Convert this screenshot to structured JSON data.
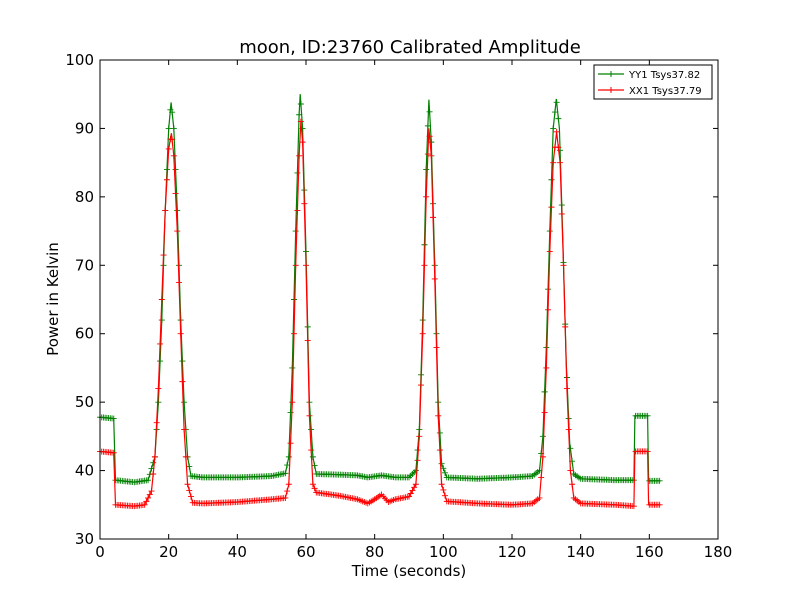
{
  "chart_data": {
    "type": "line",
    "title": "moon, ID:23760 Calibrated Amplitude",
    "xlabel": "Time (seconds)",
    "ylabel": "Power in Kelvin",
    "xlim": [
      0,
      180
    ],
    "ylim": [
      30,
      100
    ],
    "xticks": [
      "0",
      "20",
      "40",
      "60",
      "80",
      "100",
      "120",
      "140",
      "160",
      "180"
    ],
    "yticks": [
      "30",
      "40",
      "50",
      "60",
      "70",
      "80",
      "90",
      "100"
    ],
    "grid": false,
    "legend": "top-right",
    "colors": {
      "YY1": "#008000",
      "XX1": "#ff0000"
    },
    "series": [
      {
        "name": "YY1 Tsys37.82",
        "color": "#008000",
        "marker": "plus",
        "points": [
          [
            0,
            47.8
          ],
          [
            4,
            47.6
          ],
          [
            4.5,
            38.6
          ],
          [
            10,
            38.3
          ],
          [
            14,
            38.6
          ],
          [
            16,
            42
          ],
          [
            17,
            50
          ],
          [
            18,
            62
          ],
          [
            19,
            78
          ],
          [
            20,
            90
          ],
          [
            20.7,
            93.8
          ],
          [
            21.5,
            90
          ],
          [
            22.5,
            78
          ],
          [
            23.5,
            62
          ],
          [
            24.5,
            50
          ],
          [
            25.5,
            42
          ],
          [
            26.5,
            39.2
          ],
          [
            30,
            39
          ],
          [
            40,
            39
          ],
          [
            50,
            39.2
          ],
          [
            54,
            39.6
          ],
          [
            55,
            42
          ],
          [
            56,
            55
          ],
          [
            57,
            75
          ],
          [
            58,
            92
          ],
          [
            58.3,
            95
          ],
          [
            59,
            90
          ],
          [
            60,
            72
          ],
          [
            61,
            50
          ],
          [
            62,
            42
          ],
          [
            63,
            39.5
          ],
          [
            70,
            39.4
          ],
          [
            75,
            39.3
          ],
          [
            78,
            39
          ],
          [
            82,
            39.3
          ],
          [
            86,
            39
          ],
          [
            90,
            39
          ],
          [
            92,
            40
          ],
          [
            93,
            46
          ],
          [
            94,
            62
          ],
          [
            95,
            84
          ],
          [
            95.8,
            94.2
          ],
          [
            96.5,
            88
          ],
          [
            97.5,
            70
          ],
          [
            98.5,
            50
          ],
          [
            99.5,
            41
          ],
          [
            101,
            39
          ],
          [
            110,
            38.8
          ],
          [
            120,
            39
          ],
          [
            126,
            39.2
          ],
          [
            128,
            40
          ],
          [
            129,
            45
          ],
          [
            130,
            58
          ],
          [
            131,
            75
          ],
          [
            132,
            90
          ],
          [
            132.9,
            94.3
          ],
          [
            133.8,
            90
          ],
          [
            134.8,
            74
          ],
          [
            135.8,
            56
          ],
          [
            136.8,
            44
          ],
          [
            138,
            39.5
          ],
          [
            140,
            38.8
          ],
          [
            150,
            38.6
          ],
          [
            155.5,
            38.6
          ],
          [
            155.8,
            48
          ],
          [
            159.5,
            48
          ],
          [
            159.8,
            38.5
          ],
          [
            163,
            38.5
          ]
        ]
      },
      {
        "name": "XX1 Tsys37.79",
        "color": "#ff0000",
        "marker": "plus",
        "points": [
          [
            0,
            42.8
          ],
          [
            4,
            42.6
          ],
          [
            4.5,
            35
          ],
          [
            10,
            34.8
          ],
          [
            13,
            35
          ],
          [
            15,
            37
          ],
          [
            16,
            42
          ],
          [
            17,
            52
          ],
          [
            18,
            65
          ],
          [
            19,
            78
          ],
          [
            20,
            87
          ],
          [
            20.8,
            89.3
          ],
          [
            21.5,
            86
          ],
          [
            22.5,
            75
          ],
          [
            23.5,
            60
          ],
          [
            24.5,
            46
          ],
          [
            25.5,
            38
          ],
          [
            27,
            35.3
          ],
          [
            30,
            35.2
          ],
          [
            40,
            35.4
          ],
          [
            50,
            35.8
          ],
          [
            54,
            36
          ],
          [
            55,
            38
          ],
          [
            56,
            50
          ],
          [
            57,
            70
          ],
          [
            58,
            86
          ],
          [
            58.5,
            91
          ],
          [
            59,
            88
          ],
          [
            60,
            70
          ],
          [
            61,
            48
          ],
          [
            62,
            38
          ],
          [
            63,
            36.8
          ],
          [
            70,
            36.3
          ],
          [
            75,
            35.8
          ],
          [
            78,
            35.2
          ],
          [
            80,
            35.8
          ],
          [
            82,
            36.5
          ],
          [
            84,
            35.4
          ],
          [
            86,
            35.8
          ],
          [
            90,
            36.2
          ],
          [
            92,
            38
          ],
          [
            93,
            45
          ],
          [
            94,
            60
          ],
          [
            95,
            80
          ],
          [
            95.8,
            90
          ],
          [
            96.5,
            86
          ],
          [
            97.5,
            68
          ],
          [
            98.5,
            48
          ],
          [
            99.5,
            38
          ],
          [
            101,
            35.5
          ],
          [
            110,
            35.2
          ],
          [
            120,
            35
          ],
          [
            126,
            35.2
          ],
          [
            128,
            36
          ],
          [
            129,
            42
          ],
          [
            130,
            55
          ],
          [
            131,
            72
          ],
          [
            132,
            85
          ],
          [
            133,
            89.5
          ],
          [
            134,
            85
          ],
          [
            135,
            70
          ],
          [
            136,
            52
          ],
          [
            137,
            40
          ],
          [
            138,
            36
          ],
          [
            140,
            35.2
          ],
          [
            150,
            35
          ],
          [
            155.5,
            34.8
          ],
          [
            155.8,
            42.8
          ],
          [
            159.5,
            42.8
          ],
          [
            159.8,
            35
          ],
          [
            163,
            35
          ]
        ]
      }
    ]
  }
}
